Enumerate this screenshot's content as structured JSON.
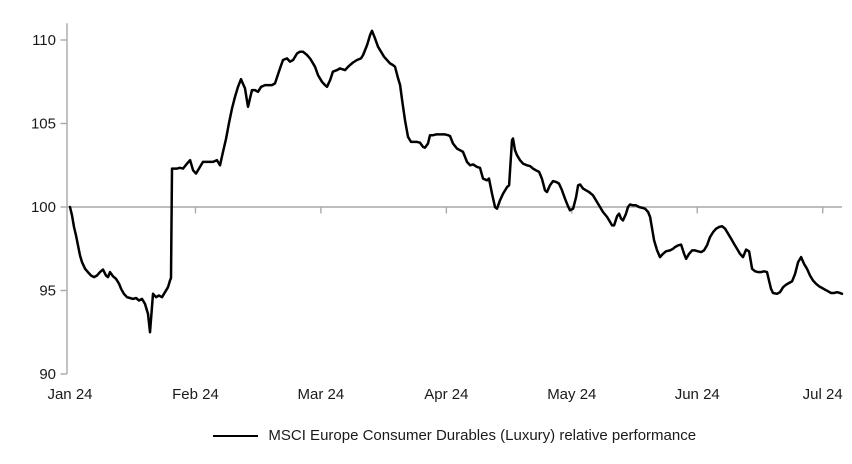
{
  "chart_data": {
    "type": "line",
    "title": "",
    "x_unit": "months since start of Jan 2024 (0 = Jan 24 tick, 6 = Jul 24 tick)",
    "x_tick_labels": [
      "Jan 24",
      "Feb 24",
      "Mar 24",
      "Apr 24",
      "May 24",
      "Jun 24",
      "Jul 24"
    ],
    "y_ticks": [
      90,
      95,
      100,
      105,
      110
    ],
    "ylim": [
      90,
      111
    ],
    "baseline_value": 100,
    "grid": "none except single horizontal baseline at value 100 with month tick marks",
    "legend_position": "bottom-center",
    "colors": {
      "series": "#000000",
      "axis": "#a9a9a9",
      "text": "#1a1a1a",
      "background": "#ffffff"
    },
    "series": [
      {
        "name": "MSCI Europe Consumer Durables (Luxury) relative performance",
        "points": [
          [
            0.0,
            100.0
          ],
          [
            0.016,
            99.5
          ],
          [
            0.032,
            98.8
          ],
          [
            0.048,
            98.3
          ],
          [
            0.064,
            97.7
          ],
          [
            0.08,
            97.1
          ],
          [
            0.096,
            96.7
          ],
          [
            0.12,
            96.3
          ],
          [
            0.143,
            96.1
          ],
          [
            0.167,
            95.9
          ],
          [
            0.191,
            95.8
          ],
          [
            0.215,
            95.9
          ],
          [
            0.239,
            96.1
          ],
          [
            0.263,
            96.25
          ],
          [
            0.287,
            95.9
          ],
          [
            0.303,
            95.8
          ],
          [
            0.319,
            96.1
          ],
          [
            0.343,
            95.85
          ],
          [
            0.367,
            95.7
          ],
          [
            0.391,
            95.4
          ],
          [
            0.407,
            95.1
          ],
          [
            0.43,
            94.8
          ],
          [
            0.454,
            94.6
          ],
          [
            0.478,
            94.55
          ],
          [
            0.502,
            94.5
          ],
          [
            0.526,
            94.55
          ],
          [
            0.55,
            94.4
          ],
          [
            0.574,
            94.5
          ],
          [
            0.598,
            94.2
          ],
          [
            0.622,
            93.6
          ],
          [
            0.638,
            92.5
          ],
          [
            0.662,
            94.8
          ],
          [
            0.686,
            94.6
          ],
          [
            0.709,
            94.7
          ],
          [
            0.733,
            94.6
          ],
          [
            0.757,
            94.9
          ],
          [
            0.781,
            95.2
          ],
          [
            0.797,
            95.6
          ],
          [
            0.805,
            95.75
          ],
          [
            0.813,
            102.3
          ],
          [
            0.829,
            102.3
          ],
          [
            0.853,
            102.3
          ],
          [
            0.877,
            102.35
          ],
          [
            0.901,
            102.3
          ],
          [
            0.933,
            102.6
          ],
          [
            0.957,
            102.8
          ],
          [
            0.981,
            102.2
          ],
          [
            1.004,
            102.0
          ],
          [
            1.036,
            102.4
          ],
          [
            1.06,
            102.7
          ],
          [
            1.092,
            102.7
          ],
          [
            1.116,
            102.7
          ],
          [
            1.14,
            102.7
          ],
          [
            1.172,
            102.8
          ],
          [
            1.196,
            102.5
          ],
          [
            1.22,
            103.3
          ],
          [
            1.244,
            104.1
          ],
          [
            1.267,
            105.0
          ],
          [
            1.291,
            105.9
          ],
          [
            1.315,
            106.6
          ],
          [
            1.339,
            107.2
          ],
          [
            1.363,
            107.65
          ],
          [
            1.395,
            107.1
          ],
          [
            1.419,
            106.0
          ],
          [
            1.451,
            107.0
          ],
          [
            1.475,
            107.0
          ],
          [
            1.499,
            106.9
          ],
          [
            1.523,
            107.2
          ],
          [
            1.555,
            107.3
          ],
          [
            1.579,
            107.3
          ],
          [
            1.61,
            107.3
          ],
          [
            1.634,
            107.4
          ],
          [
            1.674,
            108.3
          ],
          [
            1.698,
            108.8
          ],
          [
            1.73,
            108.9
          ],
          [
            1.754,
            108.7
          ],
          [
            1.778,
            108.8
          ],
          [
            1.81,
            109.2
          ],
          [
            1.833,
            109.3
          ],
          [
            1.857,
            109.3
          ],
          [
            1.889,
            109.1
          ],
          [
            1.913,
            108.9
          ],
          [
            1.953,
            108.4
          ],
          [
            1.977,
            107.9
          ],
          [
            2.009,
            107.5
          ],
          [
            2.033,
            107.3
          ],
          [
            2.049,
            107.2
          ],
          [
            2.073,
            107.6
          ],
          [
            2.096,
            108.1
          ],
          [
            2.128,
            108.2
          ],
          [
            2.152,
            108.3
          ],
          [
            2.192,
            108.2
          ],
          [
            2.224,
            108.45
          ],
          [
            2.256,
            108.65
          ],
          [
            2.288,
            108.8
          ],
          [
            2.32,
            108.9
          ],
          [
            2.336,
            109.1
          ],
          [
            2.368,
            109.7
          ],
          [
            2.392,
            110.3
          ],
          [
            2.407,
            110.55
          ],
          [
            2.431,
            110.1
          ],
          [
            2.455,
            109.6
          ],
          [
            2.479,
            109.3
          ],
          [
            2.503,
            109.0
          ],
          [
            2.527,
            108.8
          ],
          [
            2.551,
            108.6
          ],
          [
            2.575,
            108.5
          ],
          [
            2.591,
            108.4
          ],
          [
            2.615,
            107.7
          ],
          [
            2.631,
            107.3
          ],
          [
            2.647,
            106.4
          ],
          [
            2.67,
            105.2
          ],
          [
            2.694,
            104.2
          ],
          [
            2.718,
            103.9
          ],
          [
            2.742,
            103.9
          ],
          [
            2.766,
            103.9
          ],
          [
            2.79,
            103.85
          ],
          [
            2.814,
            103.6
          ],
          [
            2.83,
            103.55
          ],
          [
            2.854,
            103.8
          ],
          [
            2.87,
            104.3
          ],
          [
            2.894,
            104.3
          ],
          [
            2.918,
            104.35
          ],
          [
            2.942,
            104.35
          ],
          [
            2.965,
            104.35
          ],
          [
            2.989,
            104.35
          ],
          [
            3.013,
            104.3
          ],
          [
            3.029,
            104.25
          ],
          [
            3.053,
            103.8
          ],
          [
            3.085,
            103.5
          ],
          [
            3.109,
            103.4
          ],
          [
            3.133,
            103.3
          ],
          [
            3.165,
            102.7
          ],
          [
            3.189,
            102.5
          ],
          [
            3.213,
            102.55
          ],
          [
            3.244,
            102.4
          ],
          [
            3.268,
            102.35
          ],
          [
            3.292,
            101.7
          ],
          [
            3.324,
            101.6
          ],
          [
            3.34,
            101.7
          ],
          [
            3.364,
            100.8
          ],
          [
            3.388,
            100.0
          ],
          [
            3.404,
            99.9
          ],
          [
            3.428,
            100.4
          ],
          [
            3.452,
            100.8
          ],
          [
            3.484,
            101.2
          ],
          [
            3.5,
            101.3
          ],
          [
            3.523,
            104.0
          ],
          [
            3.531,
            104.1
          ],
          [
            3.547,
            103.4
          ],
          [
            3.563,
            103.1
          ],
          [
            3.587,
            102.8
          ],
          [
            3.611,
            102.6
          ],
          [
            3.643,
            102.5
          ],
          [
            3.667,
            102.45
          ],
          [
            3.691,
            102.3
          ],
          [
            3.715,
            102.2
          ],
          [
            3.739,
            102.1
          ],
          [
            3.762,
            101.7
          ],
          [
            3.786,
            101.0
          ],
          [
            3.802,
            100.9
          ],
          [
            3.826,
            101.3
          ],
          [
            3.85,
            101.55
          ],
          [
            3.874,
            101.5
          ],
          [
            3.898,
            101.4
          ],
          [
            3.922,
            101.0
          ],
          [
            3.946,
            100.5
          ],
          [
            3.97,
            100.05
          ],
          [
            3.986,
            99.8
          ],
          [
            4.01,
            99.9
          ],
          [
            4.034,
            100.6
          ],
          [
            4.05,
            101.3
          ],
          [
            4.066,
            101.35
          ],
          [
            4.09,
            101.1
          ],
          [
            4.113,
            101.0
          ],
          [
            4.137,
            100.9
          ],
          [
            4.169,
            100.7
          ],
          [
            4.201,
            100.3
          ],
          [
            4.225,
            100.0
          ],
          [
            4.249,
            99.7
          ],
          [
            4.281,
            99.4
          ],
          [
            4.305,
            99.1
          ],
          [
            4.321,
            98.9
          ],
          [
            4.337,
            98.9
          ],
          [
            4.361,
            99.45
          ],
          [
            4.377,
            99.6
          ],
          [
            4.393,
            99.3
          ],
          [
            4.408,
            99.2
          ],
          [
            4.432,
            99.6
          ],
          [
            4.448,
            100.0
          ],
          [
            4.464,
            100.15
          ],
          [
            4.488,
            100.1
          ],
          [
            4.512,
            100.1
          ],
          [
            4.536,
            100.0
          ],
          [
            4.56,
            99.95
          ],
          [
            4.584,
            99.9
          ],
          [
            4.608,
            99.7
          ],
          [
            4.624,
            99.4
          ],
          [
            4.64,
            98.7
          ],
          [
            4.656,
            98.0
          ],
          [
            4.68,
            97.4
          ],
          [
            4.703,
            97.0
          ],
          [
            4.727,
            97.2
          ],
          [
            4.751,
            97.35
          ],
          [
            4.783,
            97.4
          ],
          [
            4.807,
            97.5
          ],
          [
            4.823,
            97.6
          ],
          [
            4.847,
            97.7
          ],
          [
            4.871,
            97.75
          ],
          [
            4.895,
            97.2
          ],
          [
            4.911,
            96.9
          ],
          [
            4.935,
            97.2
          ],
          [
            4.959,
            97.4
          ],
          [
            4.983,
            97.4
          ],
          [
            5.006,
            97.35
          ],
          [
            5.03,
            97.3
          ],
          [
            5.054,
            97.4
          ],
          [
            5.078,
            97.7
          ],
          [
            5.102,
            98.2
          ],
          [
            5.126,
            98.5
          ],
          [
            5.15,
            98.7
          ],
          [
            5.174,
            98.8
          ],
          [
            5.198,
            98.85
          ],
          [
            5.222,
            98.7
          ],
          [
            5.246,
            98.4
          ],
          [
            5.27,
            98.1
          ],
          [
            5.293,
            97.8
          ],
          [
            5.317,
            97.5
          ],
          [
            5.341,
            97.2
          ],
          [
            5.365,
            97.0
          ],
          [
            5.389,
            97.45
          ],
          [
            5.413,
            97.35
          ],
          [
            5.437,
            96.3
          ],
          [
            5.461,
            96.15
          ],
          [
            5.485,
            96.1
          ],
          [
            5.509,
            96.1
          ],
          [
            5.533,
            96.15
          ],
          [
            5.556,
            96.1
          ],
          [
            5.572,
            95.6
          ],
          [
            5.588,
            95.1
          ],
          [
            5.604,
            94.85
          ],
          [
            5.636,
            94.8
          ],
          [
            5.66,
            94.9
          ],
          [
            5.684,
            95.2
          ],
          [
            5.708,
            95.35
          ],
          [
            5.732,
            95.45
          ],
          [
            5.756,
            95.55
          ],
          [
            5.78,
            96.0
          ],
          [
            5.804,
            96.7
          ],
          [
            5.828,
            97.0
          ],
          [
            5.851,
            96.6
          ],
          [
            5.875,
            96.3
          ],
          [
            5.899,
            95.9
          ],
          [
            5.923,
            95.6
          ],
          [
            5.947,
            95.4
          ],
          [
            5.971,
            95.25
          ],
          [
            5.995,
            95.15
          ],
          [
            6.019,
            95.05
          ],
          [
            6.043,
            94.95
          ],
          [
            6.067,
            94.85
          ],
          [
            6.09,
            94.85
          ],
          [
            6.114,
            94.9
          ],
          [
            6.138,
            94.85
          ],
          [
            6.154,
            94.8
          ]
        ]
      }
    ]
  },
  "legend": {
    "label": "MSCI Europe Consumer Durables (Luxury) relative performance"
  }
}
